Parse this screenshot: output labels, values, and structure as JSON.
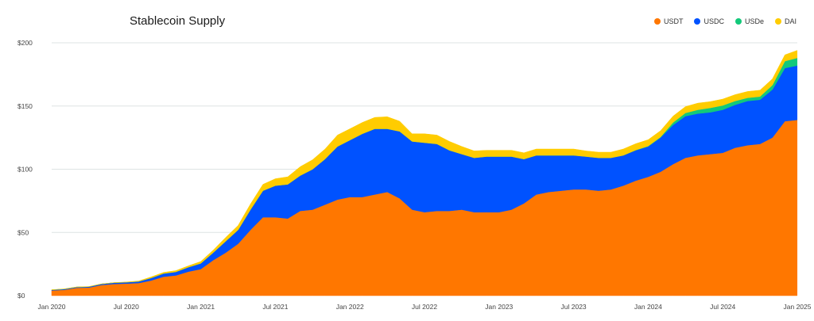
{
  "chart_data": {
    "type": "area",
    "stacked": true,
    "title": "Stablecoin Supply",
    "xlabel": "",
    "ylabel": "",
    "ylim": [
      0,
      200
    ],
    "yticks": [
      0,
      50,
      100,
      150,
      200
    ],
    "ytick_labels": [
      "$0",
      "$50",
      "$100",
      "$150",
      "$200"
    ],
    "xtick_labels": [
      "Jan 2020",
      "Jul 2020",
      "Jan 2021",
      "Jul 2021",
      "Jan 2022",
      "Jul 2022",
      "Jan 2023",
      "Jul 2023",
      "Jan 2024",
      "Jul 2024",
      "Jan 2025"
    ],
    "xticks": [
      "2020-01",
      "2020-07",
      "2021-01",
      "2021-07",
      "2022-01",
      "2022-07",
      "2023-01",
      "2023-07",
      "2024-01",
      "2024-07",
      "2025-01"
    ],
    "grid": true,
    "legend": "top-right",
    "x": [
      "2020-01",
      "2020-02",
      "2020-03",
      "2020-04",
      "2020-05",
      "2020-06",
      "2020-07",
      "2020-08",
      "2020-09",
      "2020-10",
      "2020-11",
      "2020-12",
      "2021-01",
      "2021-02",
      "2021-03",
      "2021-04",
      "2021-05",
      "2021-06",
      "2021-07",
      "2021-08",
      "2021-09",
      "2021-10",
      "2021-11",
      "2021-12",
      "2022-01",
      "2022-02",
      "2022-03",
      "2022-04",
      "2022-05",
      "2022-06",
      "2022-07",
      "2022-08",
      "2022-09",
      "2022-10",
      "2022-11",
      "2022-12",
      "2023-01",
      "2023-02",
      "2023-03",
      "2023-04",
      "2023-05",
      "2023-06",
      "2023-07",
      "2023-08",
      "2023-09",
      "2023-10",
      "2023-11",
      "2023-12",
      "2024-01",
      "2024-02",
      "2024-03",
      "2024-04",
      "2024-05",
      "2024-06",
      "2024-07",
      "2024-08",
      "2024-09",
      "2024-10",
      "2024-11",
      "2024-12",
      "2024-12-31"
    ],
    "series": [
      {
        "name": "USDT",
        "color": "#FF7700",
        "values": [
          4.1,
          4.6,
          6.2,
          6.4,
          8.4,
          9.2,
          9.5,
          10,
          12,
          15,
          16,
          19,
          21,
          28,
          34,
          41,
          52,
          62,
          62,
          61,
          67,
          68,
          72,
          76,
          78,
          78,
          80,
          82,
          77,
          68,
          66,
          67,
          67,
          68,
          66,
          66,
          66,
          68,
          73,
          80,
          82,
          83,
          84,
          84,
          83,
          84,
          87,
          91,
          94,
          98,
          104,
          109,
          111,
          112,
          113,
          117,
          119,
          120,
          125,
          138,
          139
        ]
      },
      {
        "name": "USDC",
        "color": "#0052FF",
        "values": [
          0.5,
          0.6,
          0.6,
          0.7,
          0.8,
          1.0,
          1.1,
          1.2,
          2.0,
          2.5,
          2.8,
          3.5,
          4.5,
          6,
          9,
          11,
          16,
          21,
          25,
          27,
          28,
          32,
          36,
          42,
          45,
          50,
          52,
          50,
          53,
          54,
          55,
          53,
          48,
          44,
          43,
          44,
          44,
          42,
          35,
          31,
          29,
          28,
          27,
          26,
          26,
          25,
          24,
          24,
          24,
          27,
          31,
          33,
          33,
          33,
          34,
          34,
          35,
          35,
          38,
          42,
          43
        ]
      },
      {
        "name": "USDe",
        "color": "#13C97A",
        "values": [
          0,
          0,
          0,
          0,
          0,
          0,
          0,
          0,
          0,
          0,
          0,
          0,
          0,
          0,
          0,
          0,
          0,
          0,
          0,
          0,
          0,
          0,
          0,
          0,
          0,
          0,
          0,
          0,
          0,
          0,
          0,
          0,
          0,
          0,
          0,
          0,
          0,
          0,
          0,
          0,
          0,
          0,
          0,
          0,
          0,
          0,
          0,
          0.2,
          0.3,
          0.5,
          2,
          2.5,
          3,
          3.5,
          3.5,
          3,
          2.5,
          2.5,
          3.5,
          5.5,
          6
        ]
      },
      {
        "name": "DAI",
        "color": "#FFCC00",
        "values": [
          0.1,
          0.1,
          0.1,
          0.1,
          0.1,
          0.1,
          0.2,
          0.4,
          0.8,
          0.9,
          1.0,
          1.1,
          1.5,
          2,
          3,
          3.5,
          4.5,
          5,
          5.5,
          6,
          7,
          7.5,
          8,
          9,
          9,
          9,
          9,
          9.5,
          8,
          6,
          7,
          7,
          7,
          6,
          5.5,
          5,
          5,
          5,
          5,
          5,
          5,
          5,
          5,
          4.5,
          4.5,
          4.5,
          5,
          5,
          5,
          5,
          5,
          5,
          5.3,
          5,
          5,
          5,
          5,
          5,
          5,
          5,
          6
        ]
      }
    ]
  }
}
